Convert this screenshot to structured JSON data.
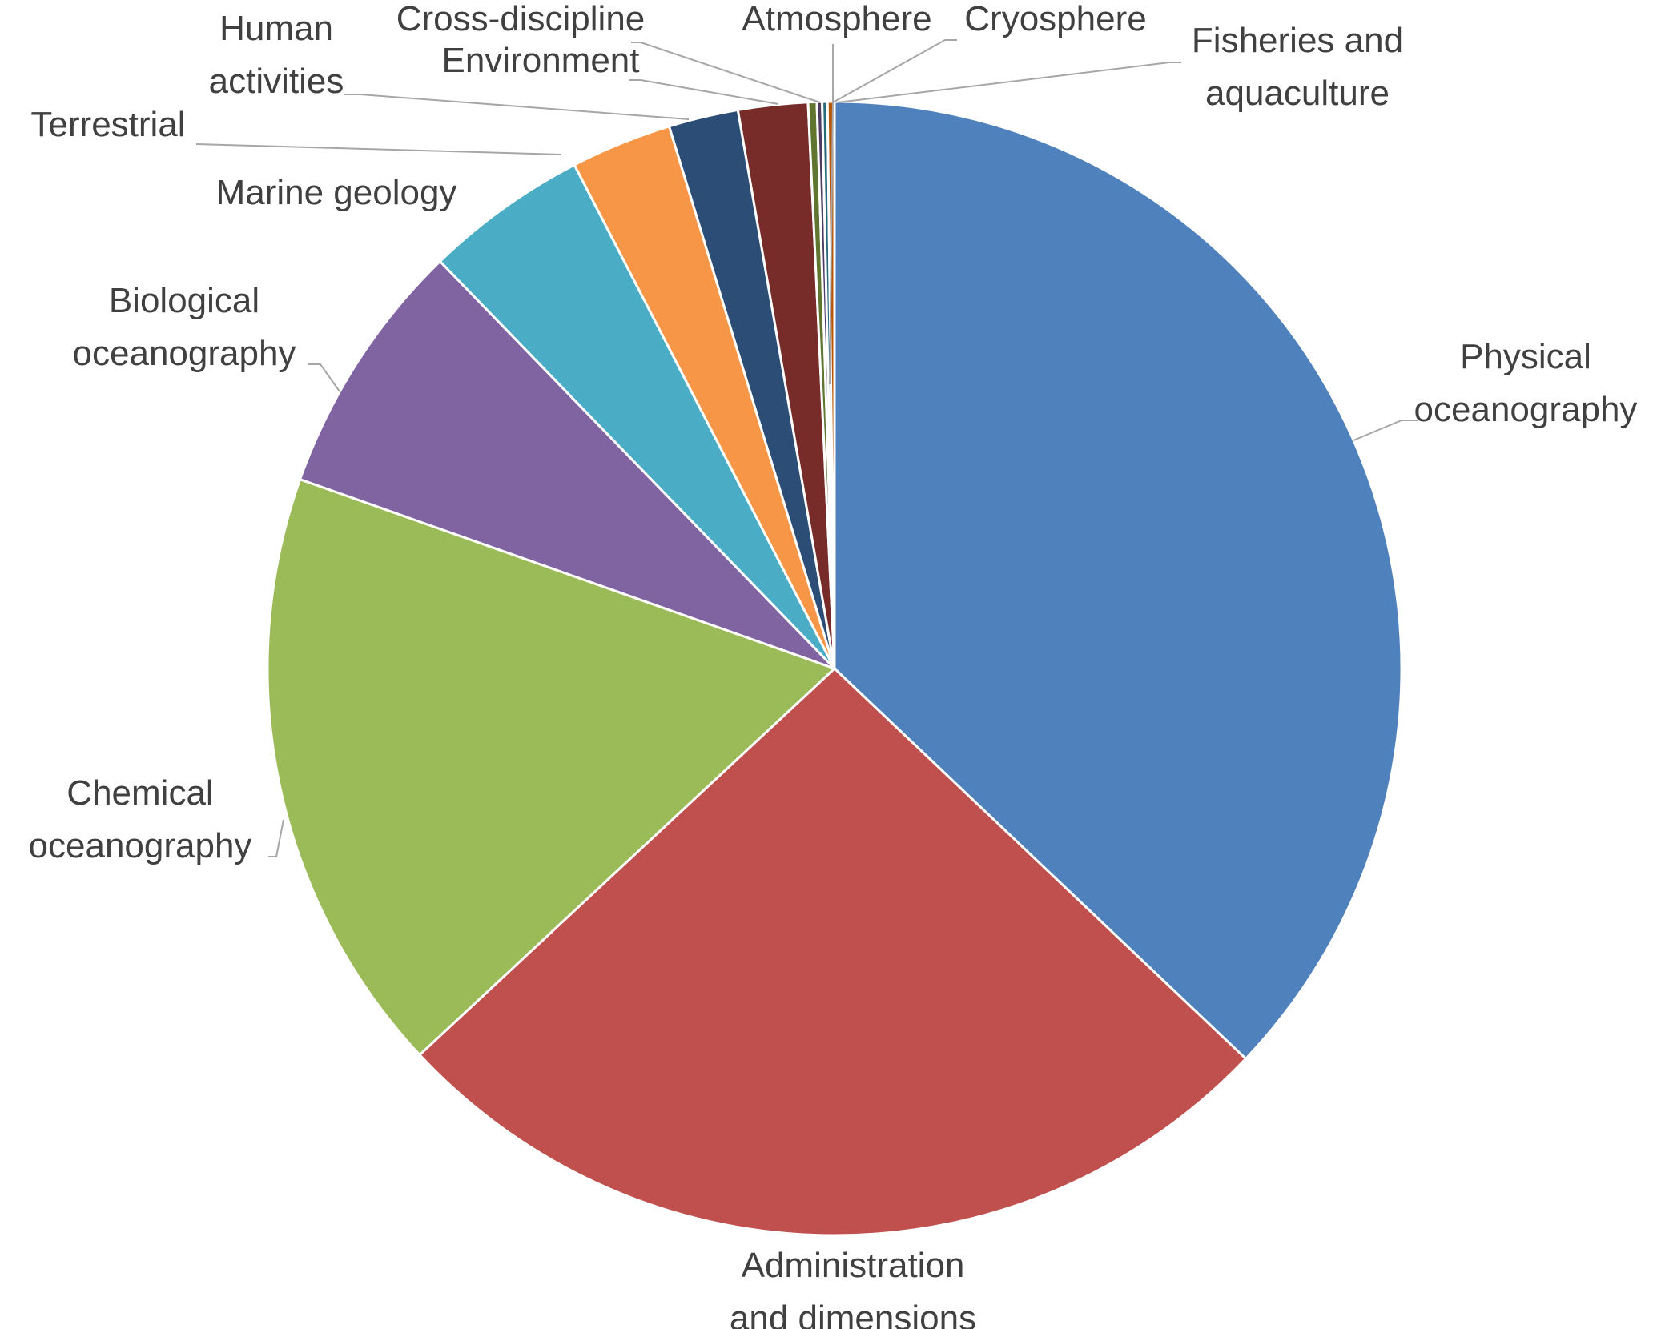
{
  "chart_data": {
    "type": "pie",
    "title": "",
    "start_angle_deg": 0,
    "direction": "clockwise",
    "slices": [
      {
        "label": "Physical oceanography",
        "lines": [
          "Physical",
          "oceanography"
        ],
        "value": 37.4,
        "color": "#4f81bd"
      },
      {
        "label": "Administration and dimensions",
        "lines": [
          "Administration",
          "and dimensions"
        ],
        "value": 26.2,
        "color": "#c0504d"
      },
      {
        "label": "Chemical oceanography",
        "lines": [
          "Chemical",
          "oceanography"
        ],
        "value": 17.5,
        "color": "#9bbb59"
      },
      {
        "label": "Biological oceanography",
        "lines": [
          "Biological",
          "oceanography"
        ],
        "value": 7.4,
        "color": "#8064a2"
      },
      {
        "label": "Marine geology",
        "lines": [
          "Marine geology"
        ],
        "value": 4.7,
        "color": "#4bacc6"
      },
      {
        "label": "Terrestrial",
        "lines": [
          "Terrestrial"
        ],
        "value": 2.9,
        "color": "#f79646"
      },
      {
        "label": "Human activities",
        "lines": [
          "Human",
          "activities"
        ],
        "value": 2.0,
        "color": "#2c4d75"
      },
      {
        "label": "Environment",
        "lines": [
          "Environment"
        ],
        "value": 2.0,
        "color": "#772c2a"
      },
      {
        "label": "Cross-discipline",
        "lines": [
          "Cross-discipline"
        ],
        "value": 0.25,
        "color": "#5f7530"
      },
      {
        "label": "Atmosphere",
        "lines": [
          "Atmosphere"
        ],
        "value": 0.15,
        "color": "#4d3b62"
      },
      {
        "label": "Cryosphere",
        "lines": [
          "Cryosphere"
        ],
        "value": 0.15,
        "color": "#276a7c"
      },
      {
        "label": "Fisheries and aquaculture",
        "lines": [
          "Fisheries and",
          "aquaculture"
        ],
        "value": 0.2,
        "color": "#b65708"
      }
    ],
    "legend": "none",
    "data_labels": "category names"
  }
}
